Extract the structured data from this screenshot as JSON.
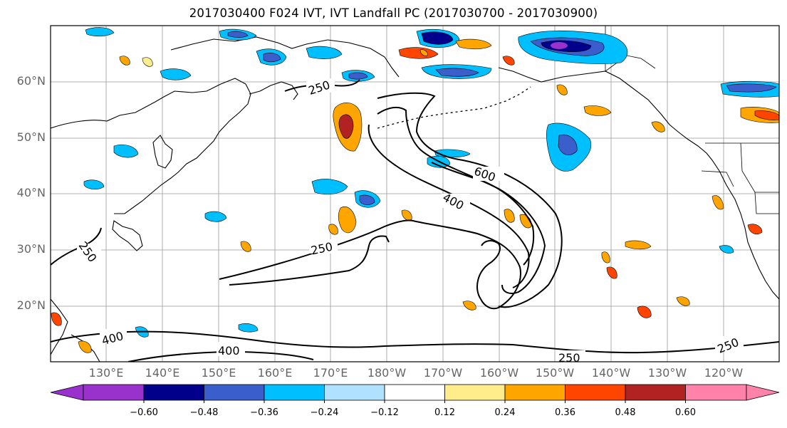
{
  "title": "2017030400 F024 IVT, IVT Landfall PC (2017030700 - 2017030900)",
  "lat_labels": [
    "60°N",
    "50°N",
    "40°N",
    "30°N",
    "20°N"
  ],
  "lon_labels": [
    "130°E",
    "140°E",
    "150°E",
    "160°E",
    "170°E",
    "180°W",
    "170°W",
    "160°W",
    "150°W",
    "140°W",
    "130°W",
    "120°W"
  ],
  "contour_labels": [
    "250",
    "600",
    "400",
    "250",
    "250",
    "400",
    "400",
    "250",
    "250"
  ],
  "colorbar": {
    "ticks": [
      "−0.60",
      "−0.48",
      "−0.36",
      "−0.24",
      "−0.12",
      "0.12",
      "0.24",
      "0.36",
      "0.48",
      "0.60"
    ],
    "colors": [
      "#9932CC",
      "#00008B",
      "#3A5FCD",
      "#00BFFF",
      "#B0E2FF",
      "#FFFFFF",
      "#FFEC8B",
      "#FFA500",
      "#FF4500",
      "#B22222",
      "#FF82AB"
    ]
  },
  "colors": {
    "contour": "#000000",
    "grid": "#999999",
    "axis_text": "#666666"
  }
}
